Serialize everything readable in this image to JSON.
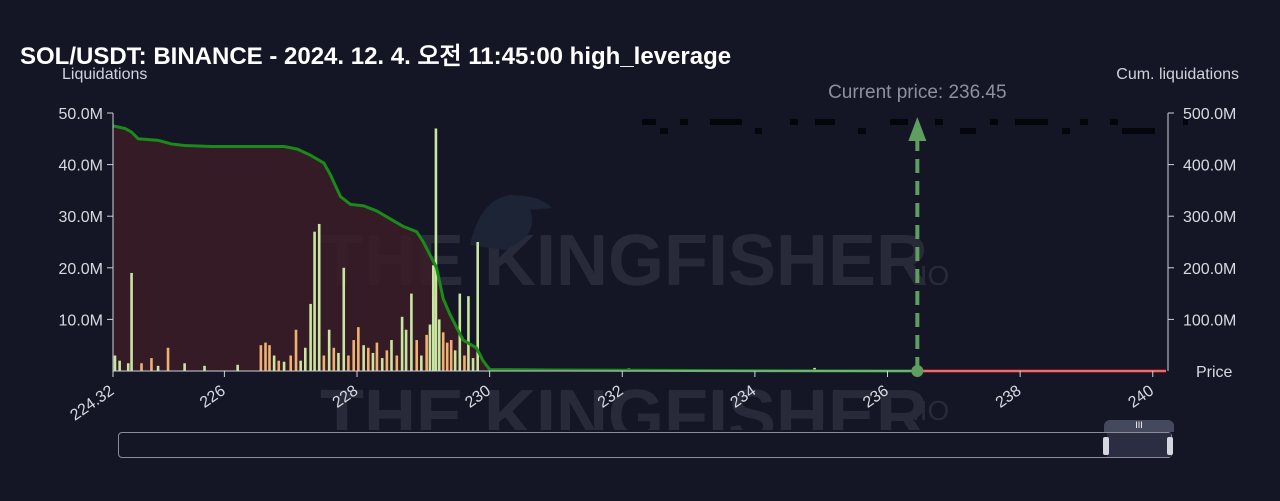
{
  "header": {
    "title": "SOL/USDT: BINANCE - 2024. 12. 4. 오전 11:45:00 high_leverage"
  },
  "watermark": {
    "brand": "THE KINGFISHER",
    "suffix": ".IO"
  },
  "colors": {
    "background": "#141625",
    "cumulative_line": "#1a8a1a",
    "cumulative_fill": "#3a1c27",
    "bars_primary": "#c8e6a0",
    "bars_secondary": "#f0b070",
    "current_price_marker": "#5e9e5e",
    "price_line_above": "#e01515",
    "price_line_below": "#1a8a1a"
  },
  "chart_data": {
    "type": "bar",
    "title": "SOL/USDT: BINANCE - 2024. 12. 4. 오전 11:45:00 high_leverage",
    "xlabel": "Price",
    "ylabel": "Liquidations",
    "y2label": "Cum. liquidations",
    "xlim": [
      224.32,
      240.2
    ],
    "ylim": [
      0,
      50000000
    ],
    "y2lim": [
      0,
      500000000
    ],
    "x_ticks": [
      "224.32",
      "226",
      "228",
      "230",
      "232",
      "234",
      "236",
      "238",
      "240"
    ],
    "y_ticks": [
      "50.0M",
      "40.0M",
      "30.0M",
      "20.0M",
      "10.0M"
    ],
    "y2_ticks": [
      "500.0M",
      "400.0M",
      "300.0M",
      "200.0M",
      "100.0M"
    ],
    "current_price": 236.45,
    "current_price_label": "Current price: 236.45",
    "grid": false,
    "bars": [
      {
        "x": 224.35,
        "value": 3000000,
        "series": "green"
      },
      {
        "x": 224.42,
        "value": 2000000,
        "series": "green"
      },
      {
        "x": 224.55,
        "value": 1500000,
        "series": "green"
      },
      {
        "x": 224.6,
        "value": 19000000,
        "series": "green"
      },
      {
        "x": 224.75,
        "value": 1500000,
        "series": "orange"
      },
      {
        "x": 224.9,
        "value": 2500000,
        "series": "orange"
      },
      {
        "x": 225.0,
        "value": 1000000,
        "series": "green"
      },
      {
        "x": 225.15,
        "value": 4500000,
        "series": "orange"
      },
      {
        "x": 225.4,
        "value": 1500000,
        "series": "green"
      },
      {
        "x": 225.7,
        "value": 1000000,
        "series": "green"
      },
      {
        "x": 226.2,
        "value": 1200000,
        "series": "green"
      },
      {
        "x": 226.55,
        "value": 5000000,
        "series": "orange"
      },
      {
        "x": 226.62,
        "value": 5500000,
        "series": "orange"
      },
      {
        "x": 226.68,
        "value": 5000000,
        "series": "orange"
      },
      {
        "x": 226.75,
        "value": 3000000,
        "series": "green"
      },
      {
        "x": 226.82,
        "value": 2000000,
        "series": "orange"
      },
      {
        "x": 226.9,
        "value": 1800000,
        "series": "green"
      },
      {
        "x": 227.0,
        "value": 3000000,
        "series": "orange"
      },
      {
        "x": 227.08,
        "value": 8000000,
        "series": "orange"
      },
      {
        "x": 227.15,
        "value": 2000000,
        "series": "green"
      },
      {
        "x": 227.22,
        "value": 4500000,
        "series": "green"
      },
      {
        "x": 227.3,
        "value": 13000000,
        "series": "green"
      },
      {
        "x": 227.36,
        "value": 27000000,
        "series": "green"
      },
      {
        "x": 227.43,
        "value": 28500000,
        "series": "green"
      },
      {
        "x": 227.5,
        "value": 3000000,
        "series": "orange"
      },
      {
        "x": 227.58,
        "value": 8000000,
        "series": "green"
      },
      {
        "x": 227.65,
        "value": 4500000,
        "series": "orange"
      },
      {
        "x": 227.72,
        "value": 3500000,
        "series": "green"
      },
      {
        "x": 227.8,
        "value": 20000000,
        "series": "green"
      },
      {
        "x": 227.87,
        "value": 3000000,
        "series": "orange"
      },
      {
        "x": 227.95,
        "value": 6000000,
        "series": "orange"
      },
      {
        "x": 228.02,
        "value": 8500000,
        "series": "orange"
      },
      {
        "x": 228.1,
        "value": 5000000,
        "series": "green"
      },
      {
        "x": 228.17,
        "value": 4500000,
        "series": "orange"
      },
      {
        "x": 228.24,
        "value": 3500000,
        "series": "green"
      },
      {
        "x": 228.3,
        "value": 5500000,
        "series": "orange"
      },
      {
        "x": 228.38,
        "value": 2500000,
        "series": "green"
      },
      {
        "x": 228.45,
        "value": 4000000,
        "series": "orange"
      },
      {
        "x": 228.52,
        "value": 6000000,
        "series": "green"
      },
      {
        "x": 228.6,
        "value": 3000000,
        "series": "orange"
      },
      {
        "x": 228.68,
        "value": 10500000,
        "series": "green"
      },
      {
        "x": 228.74,
        "value": 8000000,
        "series": "green"
      },
      {
        "x": 228.82,
        "value": 15000000,
        "series": "green"
      },
      {
        "x": 228.9,
        "value": 6000000,
        "series": "orange"
      },
      {
        "x": 228.97,
        "value": 3000000,
        "series": "green"
      },
      {
        "x": 229.05,
        "value": 7000000,
        "series": "orange"
      },
      {
        "x": 229.1,
        "value": 9000000,
        "series": "green"
      },
      {
        "x": 229.15,
        "value": 20500000,
        "series": "green"
      },
      {
        "x": 229.19,
        "value": 47000000,
        "series": "green"
      },
      {
        "x": 229.24,
        "value": 10000000,
        "series": "green"
      },
      {
        "x": 229.3,
        "value": 7500000,
        "series": "orange"
      },
      {
        "x": 229.36,
        "value": 5500000,
        "series": "orange"
      },
      {
        "x": 229.42,
        "value": 6000000,
        "series": "orange"
      },
      {
        "x": 229.48,
        "value": 4000000,
        "series": "green"
      },
      {
        "x": 229.55,
        "value": 15000000,
        "series": "green"
      },
      {
        "x": 229.62,
        "value": 3000000,
        "series": "orange"
      },
      {
        "x": 229.68,
        "value": 14500000,
        "series": "green"
      },
      {
        "x": 229.75,
        "value": 2500000,
        "series": "green"
      },
      {
        "x": 229.82,
        "value": 25000000,
        "series": "green"
      },
      {
        "x": 232.1,
        "value": 500000,
        "series": "green"
      },
      {
        "x": 234.9,
        "value": 600000,
        "series": "green"
      }
    ],
    "cumulative": [
      [
        224.32,
        475000000
      ],
      [
        224.5,
        470000000
      ],
      [
        224.6,
        463000000
      ],
      [
        224.7,
        450000000
      ],
      [
        225.0,
        447000000
      ],
      [
        225.2,
        440000000
      ],
      [
        225.4,
        437000000
      ],
      [
        225.8,
        435000000
      ],
      [
        226.5,
        435000000
      ],
      [
        226.9,
        435000000
      ],
      [
        227.1,
        430000000
      ],
      [
        227.3,
        418000000
      ],
      [
        227.5,
        403000000
      ],
      [
        227.6,
        380000000
      ],
      [
        227.75,
        338000000
      ],
      [
        227.9,
        323000000
      ],
      [
        228.1,
        320000000
      ],
      [
        228.3,
        310000000
      ],
      [
        228.5,
        295000000
      ],
      [
        228.7,
        280000000
      ],
      [
        228.9,
        270000000
      ],
      [
        229.0,
        250000000
      ],
      [
        229.1,
        225000000
      ],
      [
        229.2,
        200000000
      ],
      [
        229.3,
        140000000
      ],
      [
        229.4,
        110000000
      ],
      [
        229.5,
        85000000
      ],
      [
        229.6,
        60000000
      ],
      [
        229.8,
        45000000
      ],
      [
        229.9,
        20000000
      ],
      [
        230.0,
        3000000
      ],
      [
        231.0,
        2000000
      ],
      [
        232.0,
        1500000
      ],
      [
        233.0,
        1000000
      ],
      [
        234.0,
        500000
      ],
      [
        235.0,
        300000
      ],
      [
        236.45,
        0
      ]
    ],
    "short_side": [
      [
        236.45,
        0
      ],
      [
        240.2,
        0
      ]
    ]
  }
}
